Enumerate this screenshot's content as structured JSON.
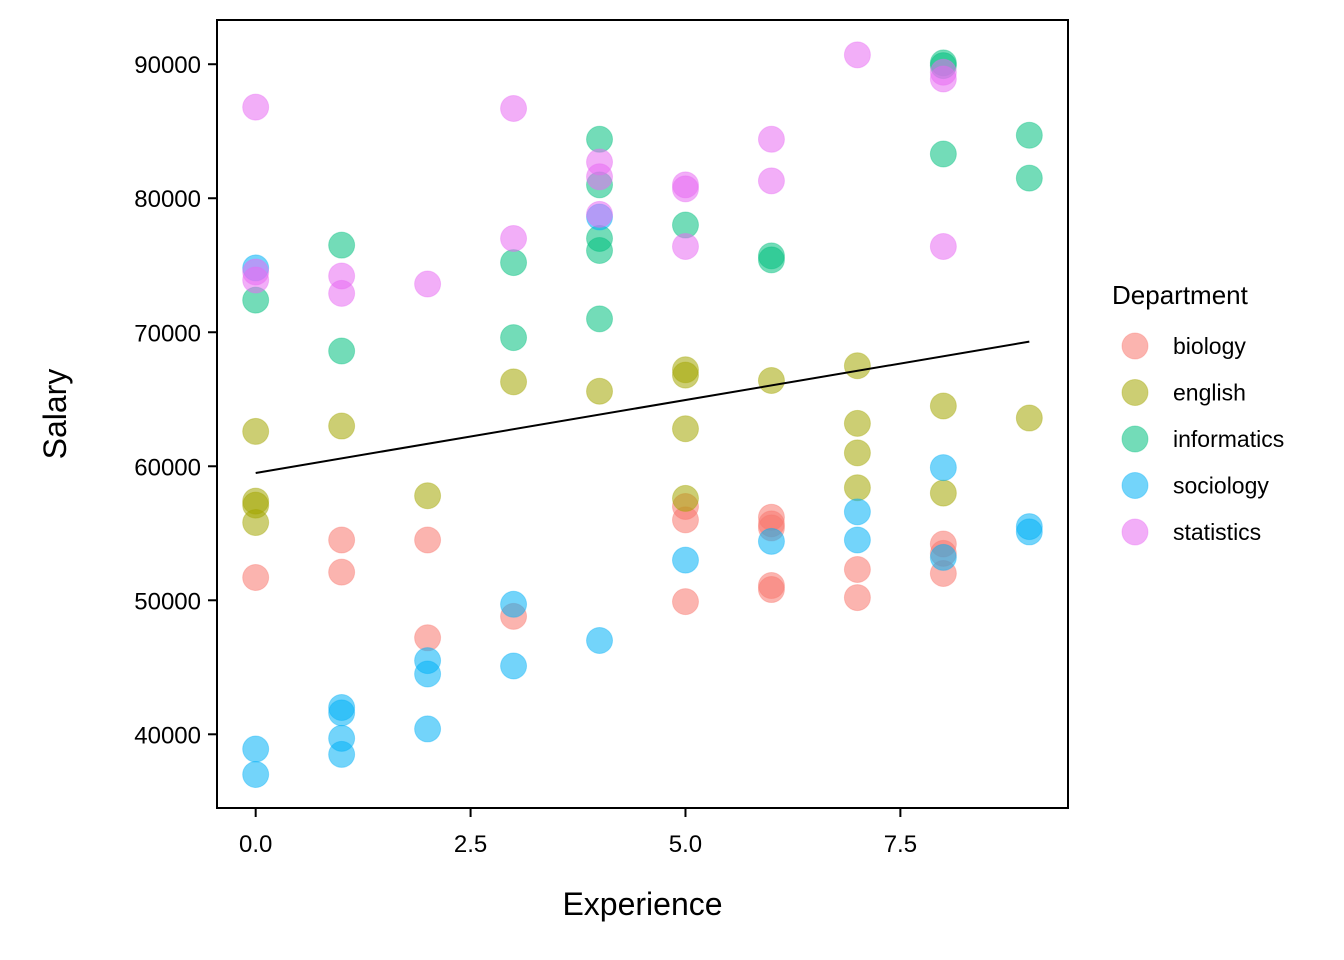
{
  "chart_data": {
    "type": "scatter",
    "xlabel": "Experience",
    "ylabel": "Salary",
    "xlim": [
      -0.45,
      9.45
    ],
    "ylim": [
      34500,
      93300
    ],
    "x_ticks": [
      0,
      2.5,
      5,
      7.5
    ],
    "x_tick_labels": [
      "0.0",
      "2.5",
      "5.0",
      "7.5"
    ],
    "y_ticks": [
      40000,
      50000,
      60000,
      70000,
      80000,
      90000
    ],
    "y_tick_labels": [
      "40000",
      "50000",
      "60000",
      "70000",
      "80000",
      "90000"
    ],
    "grid": false,
    "legend": {
      "title": "Department",
      "placement": "right"
    },
    "series": [
      {
        "name": "biology",
        "color": "#F8766D",
        "points": [
          [
            0,
            51700
          ],
          [
            1,
            54500
          ],
          [
            1,
            52100
          ],
          [
            2,
            54500
          ],
          [
            2,
            47200
          ],
          [
            3,
            48800
          ],
          [
            5,
            57000
          ],
          [
            5,
            56000
          ],
          [
            5,
            49900
          ],
          [
            6,
            56200
          ],
          [
            6,
            55700
          ],
          [
            6,
            55400
          ],
          [
            6,
            51100
          ],
          [
            6,
            50800
          ],
          [
            7,
            52300
          ],
          [
            7,
            50200
          ],
          [
            8,
            54200
          ],
          [
            8,
            53500
          ],
          [
            8,
            52000
          ]
        ]
      },
      {
        "name": "english",
        "color": "#A3A500",
        "points": [
          [
            0,
            62600
          ],
          [
            0,
            57400
          ],
          [
            0,
            57100
          ],
          [
            0,
            55800
          ],
          [
            1,
            63000
          ],
          [
            2,
            57800
          ],
          [
            3,
            66300
          ],
          [
            4,
            65600
          ],
          [
            5,
            67200
          ],
          [
            5,
            66800
          ],
          [
            5,
            62800
          ],
          [
            5,
            57600
          ],
          [
            6,
            66400
          ],
          [
            7,
            67500
          ],
          [
            7,
            63200
          ],
          [
            7,
            61000
          ],
          [
            7,
            58400
          ],
          [
            8,
            64500
          ],
          [
            8,
            58000
          ],
          [
            9,
            63600
          ]
        ]
      },
      {
        "name": "informatics",
        "color": "#00BF7D",
        "points": [
          [
            0,
            72400
          ],
          [
            1,
            76500
          ],
          [
            1,
            68600
          ],
          [
            3,
            75200
          ],
          [
            3,
            69600
          ],
          [
            4,
            84400
          ],
          [
            4,
            81000
          ],
          [
            4,
            77000
          ],
          [
            4,
            76100
          ],
          [
            4,
            71000
          ],
          [
            5,
            78000
          ],
          [
            6,
            75700
          ],
          [
            6,
            75400
          ],
          [
            8,
            90100
          ],
          [
            8,
            89900
          ],
          [
            8,
            83300
          ],
          [
            9,
            84700
          ],
          [
            9,
            81500
          ]
        ]
      },
      {
        "name": "sociology",
        "color": "#00B0F6",
        "points": [
          [
            0,
            74800
          ],
          [
            0,
            38900
          ],
          [
            0,
            37000
          ],
          [
            1,
            42000
          ],
          [
            1,
            41600
          ],
          [
            1,
            39700
          ],
          [
            1,
            38500
          ],
          [
            2,
            45500
          ],
          [
            2,
            44500
          ],
          [
            2,
            40400
          ],
          [
            3,
            49700
          ],
          [
            3,
            45100
          ],
          [
            4,
            78600
          ],
          [
            4,
            47000
          ],
          [
            5,
            53000
          ],
          [
            6,
            54400
          ],
          [
            7,
            56600
          ],
          [
            7,
            54500
          ],
          [
            8,
            59900
          ],
          [
            8,
            53200
          ],
          [
            9,
            55500
          ],
          [
            9,
            55100
          ]
        ]
      },
      {
        "name": "statistics",
        "color": "#E76BF3",
        "points": [
          [
            0,
            86800
          ],
          [
            0,
            74500
          ],
          [
            0,
            73900
          ],
          [
            1,
            74200
          ],
          [
            1,
            72900
          ],
          [
            2,
            73600
          ],
          [
            3,
            86700
          ],
          [
            3,
            77000
          ],
          [
            4,
            82700
          ],
          [
            4,
            81600
          ],
          [
            4,
            78800
          ],
          [
            5,
            81000
          ],
          [
            5,
            80700
          ],
          [
            5,
            76400
          ],
          [
            6,
            84400
          ],
          [
            6,
            81300
          ],
          [
            7,
            90700
          ],
          [
            8,
            89400
          ],
          [
            8,
            88900
          ],
          [
            8,
            76400
          ]
        ]
      }
    ],
    "trend_line": {
      "x": [
        0,
        9
      ],
      "y": [
        59500,
        69300
      ],
      "color": "#000000"
    }
  }
}
